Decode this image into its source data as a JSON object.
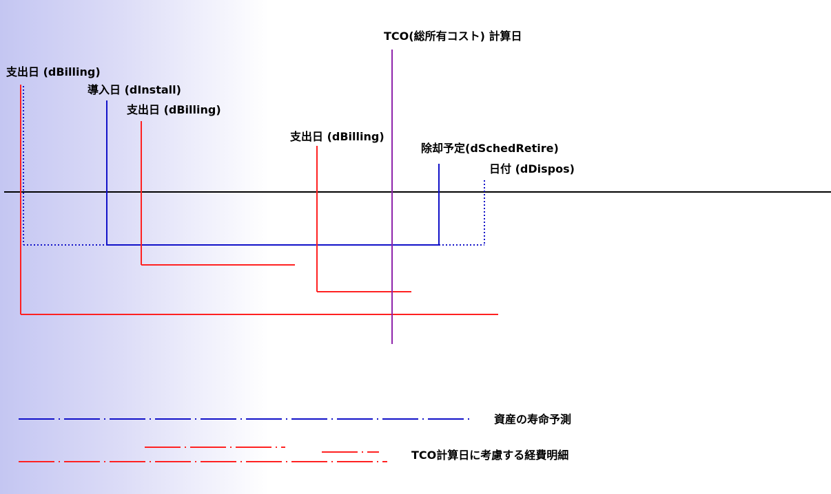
{
  "labels": {
    "tco_date": "TCO(総所有コスト) 計算日",
    "billing_1": "支出日 (dBilling)",
    "install": "導入日 (dInstall)",
    "billing_2": "支出日 (dBilling)",
    "billing_3": "支出日 (dBilling)",
    "sched_retire": "除却予定(dSchedRetire)",
    "dispos": "日付 (dDispos)"
  },
  "legend": {
    "asset_life": "資産の寿命予測",
    "tco_expenses": "TCO計算日に考慮する経費明細"
  },
  "colors": {
    "asset_line": "#1010c8",
    "expense_line": "#ff2020",
    "tco_line": "#8e24aa",
    "axis": "#000000"
  }
}
